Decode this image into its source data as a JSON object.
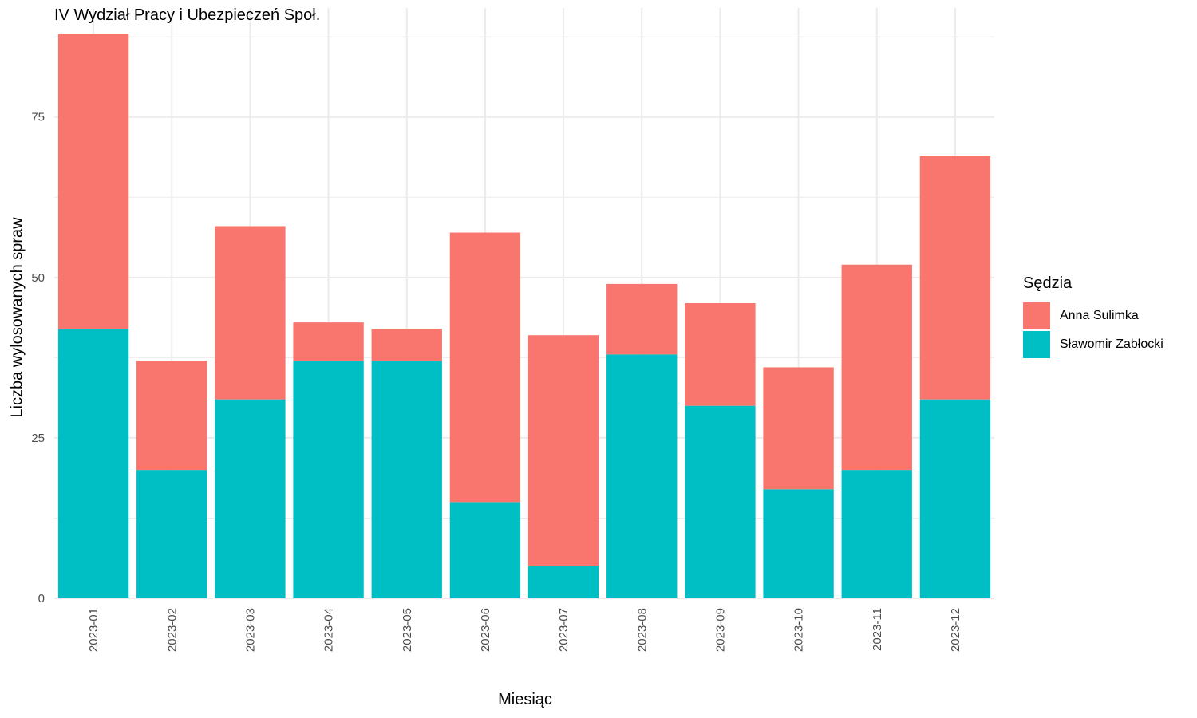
{
  "chart_data": {
    "type": "bar",
    "stacked": true,
    "title": "IV Wydział Pracy i Ubezpieczeń Społ.",
    "xlabel": "Miesiąc",
    "ylabel": "Liczba wylosowanych spraw",
    "categories": [
      "2023-01",
      "2023-02",
      "2023-03",
      "2023-04",
      "2023-05",
      "2023-06",
      "2023-07",
      "2023-08",
      "2023-09",
      "2023-10",
      "2023-11",
      "2023-12"
    ],
    "series": [
      {
        "name": "Sławomir Zabłocki",
        "color": "#00BFC4",
        "values": [
          42,
          20,
          31,
          37,
          37,
          15,
          5,
          38,
          30,
          17,
          20,
          31
        ]
      },
      {
        "name": "Anna Sulimka",
        "color": "#F8766D",
        "values": [
          46,
          17,
          27,
          6,
          5,
          42,
          36,
          11,
          16,
          19,
          32,
          38
        ]
      }
    ],
    "ylim": [
      0,
      92
    ],
    "yticks": [
      0,
      25,
      50,
      75
    ],
    "grid": true,
    "legend": {
      "title": "Sędzia",
      "position": "right",
      "items": [
        {
          "label": "Anna Sulimka",
          "color": "#F8766D"
        },
        {
          "label": "Sławomir Zabłocki",
          "color": "#00BFC4"
        }
      ]
    }
  }
}
